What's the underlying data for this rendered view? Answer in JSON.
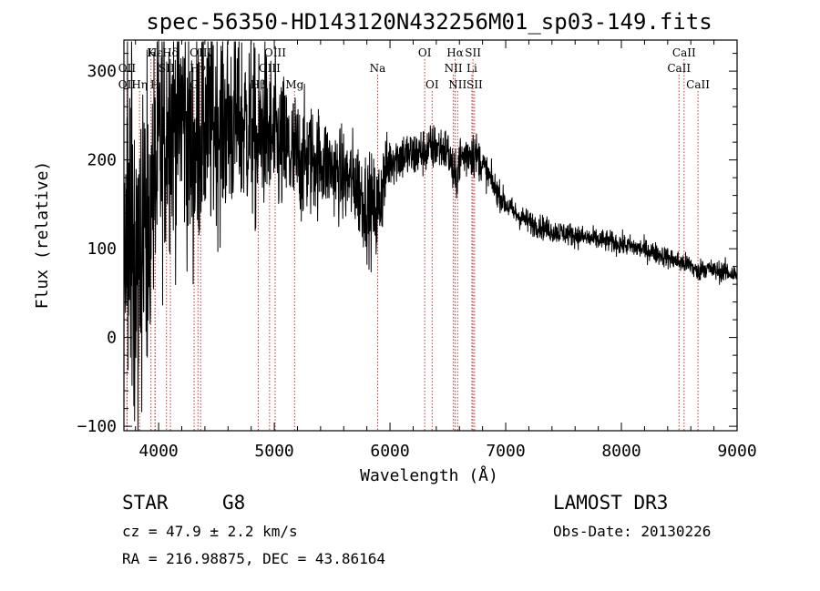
{
  "chart_data": {
    "type": "line",
    "title": "spec-56350-HD143120N432256M01_sp03-149.fits",
    "xlabel": "Wavelength (Å)",
    "ylabel": "Flux (relative)",
    "xlim": [
      3700,
      9000
    ],
    "ylim": [
      -105,
      335
    ],
    "xticks": [
      4000,
      5000,
      6000,
      7000,
      8000,
      9000
    ],
    "yticks": [
      -100,
      0,
      100,
      200,
      300
    ],
    "xtick_labels": [
      "4000",
      "5000",
      "6000",
      "7000",
      "8000",
      "9000"
    ],
    "ytick_labels": [
      "−100",
      "0",
      "100",
      "200",
      "300"
    ],
    "grid": false,
    "series": [
      {
        "name": "flux",
        "envelope_x": [
          3700,
          3750,
          3800,
          3850,
          3900,
          3950,
          4000,
          4050,
          4100,
          4150,
          4200,
          4250,
          4300,
          4350,
          4400,
          4450,
          4500,
          4600,
          4700,
          4800,
          4860,
          4900,
          5000,
          5100,
          5200,
          5300,
          5400,
          5500,
          5600,
          5700,
          5800,
          5890,
          5950,
          6000,
          6100,
          6200,
          6300,
          6400,
          6500,
          6563,
          6600,
          6650,
          6700,
          6750,
          6800,
          6900,
          7000,
          7100,
          7200,
          7300,
          7400,
          7500,
          7600,
          7700,
          7800,
          7900,
          8000,
          8100,
          8200,
          8300,
          8400,
          8500,
          8550,
          8600,
          8662,
          8700,
          8800,
          8900,
          8960,
          9000
        ],
        "envelope_y": [
          120,
          140,
          60,
          150,
          90,
          160,
          200,
          230,
          250,
          240,
          260,
          225,
          200,
          230,
          240,
          235,
          245,
          240,
          245,
          235,
          210,
          240,
          220,
          210,
          200,
          200,
          200,
          190,
          180,
          175,
          150,
          140,
          180,
          200,
          205,
          205,
          210,
          215,
          210,
          175,
          200,
          205,
          210,
          205,
          195,
          170,
          150,
          138,
          130,
          125,
          120,
          118,
          115,
          112,
          110,
          108,
          105,
          102,
          99,
          95,
          90,
          85,
          83,
          82,
          72,
          80,
          75,
          74,
          72,
          70
        ],
        "noise_profile_x": [
          3700,
          3900,
          4000,
          4500,
          5000,
          5500,
          5900,
          6000,
          6500,
          6700,
          6800,
          7000,
          8000,
          9000
        ],
        "noise_profile_y": [
          150,
          90,
          75,
          60,
          45,
          25,
          30,
          15,
          13,
          15,
          10,
          7,
          6,
          6
        ]
      }
    ],
    "line_markers": [
      {
        "label": "Hδ",
        "x": 4102,
        "row": 1
      },
      {
        "label": "Hε",
        "x": 3970,
        "row": 1
      },
      {
        "label": "K",
        "x": 3934,
        "row": 1
      },
      {
        "label": "Hβ",
        "x": 4861,
        "row": 3
      },
      {
        "label": "Hγ",
        "x": 4340,
        "row": 2
      },
      {
        "label": "OII",
        "x": 3727,
        "row": 2
      },
      {
        "label": "OIII",
        "x": 4363,
        "row": 1
      },
      {
        "label": "OIII",
        "x": 4959,
        "row": 2
      },
      {
        "label": "OIII",
        "x": 5007,
        "row": 1
      },
      {
        "label": "SII",
        "x": 4068,
        "row": 2
      },
      {
        "label": "Hη",
        "x": 3835,
        "row": 3
      },
      {
        "label": "H",
        "x": 3969,
        "row": 3
      },
      {
        "label": "OII",
        "x": 3727,
        "row": 3
      },
      {
        "label": "G",
        "x": 4307,
        "row": 3
      },
      {
        "label": "Mg",
        "x": 5175,
        "row": 3
      },
      {
        "label": "Na",
        "x": 5893,
        "row": 2
      },
      {
        "label": "OI",
        "x": 6300,
        "row": 1
      },
      {
        "label": "OI",
        "x": 6364,
        "row": 3
      },
      {
        "label": "Hα",
        "x": 6563,
        "row": 1
      },
      {
        "label": "NII",
        "x": 6548,
        "row": 2
      },
      {
        "label": "NII",
        "x": 6584,
        "row": 3
      },
      {
        "label": "SII",
        "x": 6717,
        "row": 1
      },
      {
        "label": "Li",
        "x": 6708,
        "row": 2
      },
      {
        "label": "SII",
        "x": 6731,
        "row": 3
      },
      {
        "label": "CaII",
        "x": 8542,
        "row": 1
      },
      {
        "label": "CaII",
        "x": 8498,
        "row": 2
      },
      {
        "label": "CaII",
        "x": 8662,
        "row": 3
      }
    ]
  },
  "info": {
    "object_type": "STAR",
    "subclass": "G8",
    "cz": "cz = 47.9 ± 2.2 km/s",
    "coords": "RA = 216.98875, DEC =  43.86164",
    "survey": "LAMOST DR3",
    "obs_date": "Obs-Date: 20130226"
  },
  "colors": {
    "spectrum": "#000000",
    "marker_line": "#cc3333",
    "axes": "#000000",
    "background": "#ffffff"
  }
}
